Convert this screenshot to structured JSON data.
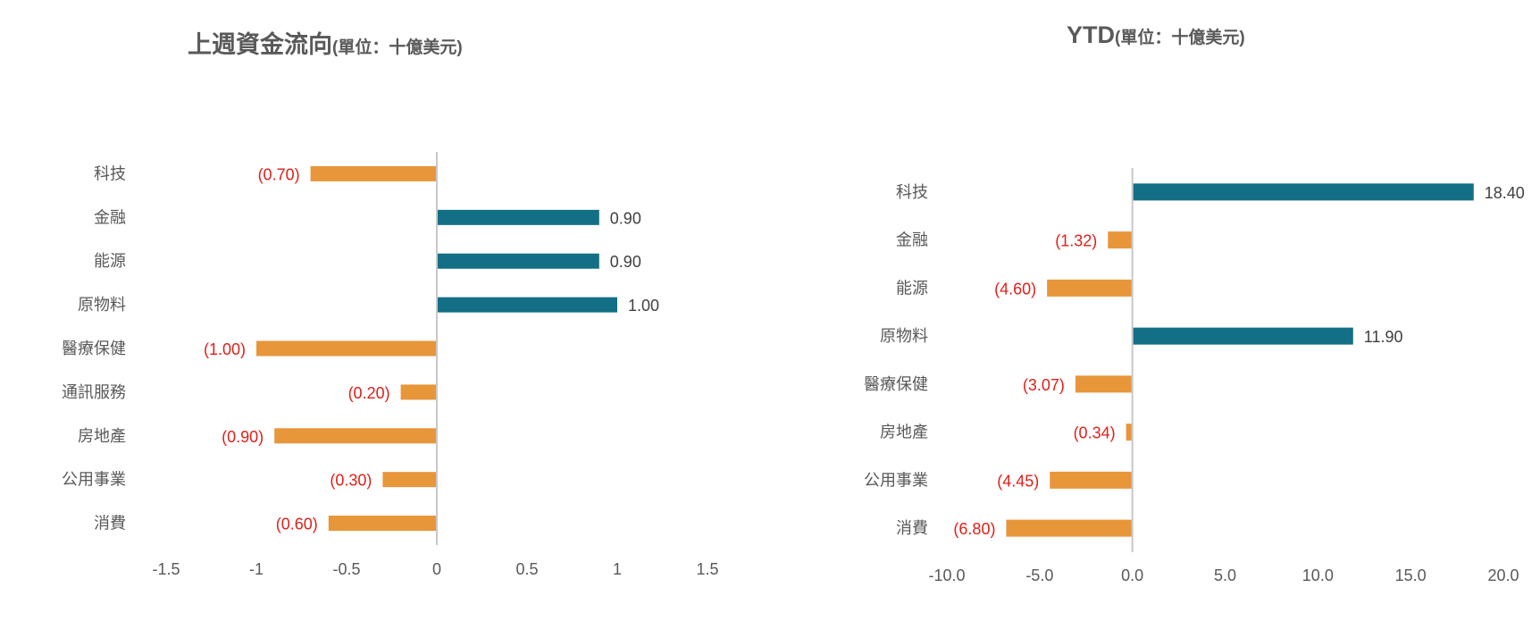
{
  "chart_data": [
    {
      "type": "bar",
      "orientation": "horizontal",
      "title": "上週資金流向",
      "subtitle": "(單位：十億美元)",
      "categories": [
        "科技",
        "金融",
        "能源",
        "原物料",
        "醫療保健",
        "通訊服務",
        "房地產",
        "公用事業",
        "消費"
      ],
      "values": [
        -0.7,
        0.9,
        0.9,
        1.0,
        -1.0,
        -0.2,
        -0.9,
        -0.3,
        -0.6
      ],
      "data_labels": [
        "(0.70)",
        "0.90",
        "0.90",
        "1.00",
        "(1.00)",
        "(0.20)",
        "(0.90)",
        "(0.30)",
        "(0.60)"
      ],
      "xlim": [
        -1.5,
        1.5
      ],
      "xticks": [
        -1.5,
        -1,
        -0.5,
        0,
        0.5,
        1,
        1.5
      ],
      "xtick_labels": [
        "-1.5",
        "-1",
        "-0.5",
        "0",
        "0.5",
        "1",
        "1.5"
      ],
      "grid": false,
      "legend": "none",
      "colors": {
        "positive_bar": "#136f85",
        "negative_bar": "#e8963a",
        "positive_label": "#404040",
        "negative_label": "#e0201a",
        "axis": "#c8c8c8"
      }
    },
    {
      "type": "bar",
      "orientation": "horizontal",
      "title": "YTD",
      "subtitle": "(單位：十億美元)",
      "categories": [
        "科技",
        "金融",
        "能源",
        "原物料",
        "醫療保健",
        "房地產",
        "公用事業",
        "消費"
      ],
      "values": [
        18.4,
        -1.32,
        -4.6,
        11.9,
        -3.07,
        -0.34,
        -4.45,
        -6.8
      ],
      "data_labels": [
        "18.40",
        "(1.32)",
        "(4.60)",
        "11.90",
        "(3.07)",
        "(0.34)",
        "(4.45)",
        "(6.80)"
      ],
      "xlim": [
        -10.0,
        20.0
      ],
      "xticks": [
        -10.0,
        -5.0,
        0.0,
        5.0,
        10.0,
        15.0,
        20.0
      ],
      "xtick_labels": [
        "-10.0",
        "-5.0",
        "0.0",
        "5.0",
        "10.0",
        "15.0",
        "20.0"
      ],
      "grid": false,
      "legend": "none",
      "colors": {
        "positive_bar": "#136f85",
        "negative_bar": "#e8963a",
        "positive_label": "#404040",
        "negative_label": "#e0201a",
        "axis": "#c8c8c8"
      }
    }
  ]
}
